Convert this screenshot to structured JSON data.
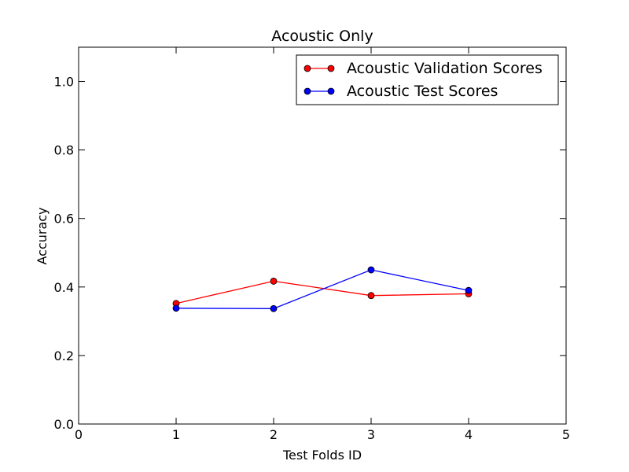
{
  "chart_data": {
    "type": "line",
    "title": "Acoustic Only",
    "xlabel": "Test Folds ID",
    "ylabel": "Accuracy",
    "xlim": [
      0,
      5
    ],
    "ylim": [
      0,
      1.1
    ],
    "xticks": [
      0,
      1,
      2,
      3,
      4,
      5
    ],
    "xtick_labels": [
      "0",
      "1",
      "2",
      "3",
      "4",
      "5"
    ],
    "yticks": [
      0,
      0.2,
      0.4,
      0.6,
      0.8,
      1.0
    ],
    "ytick_labels": [
      "0.0",
      "0.2",
      "0.4",
      "0.6",
      "0.8",
      "1.0"
    ],
    "grid": false,
    "legend_position": "top-right",
    "series": [
      {
        "name": "Acoustic Validation Scores",
        "color": "#ff0000",
        "marker": "circle",
        "x": [
          1,
          2,
          3,
          4
        ],
        "y": [
          0.352,
          0.417,
          0.375,
          0.38
        ]
      },
      {
        "name": "Acoustic Test Scores",
        "color": "#0000ff",
        "marker": "circle",
        "x": [
          1,
          2,
          3,
          4
        ],
        "y": [
          0.338,
          0.337,
          0.45,
          0.39
        ]
      }
    ]
  }
}
